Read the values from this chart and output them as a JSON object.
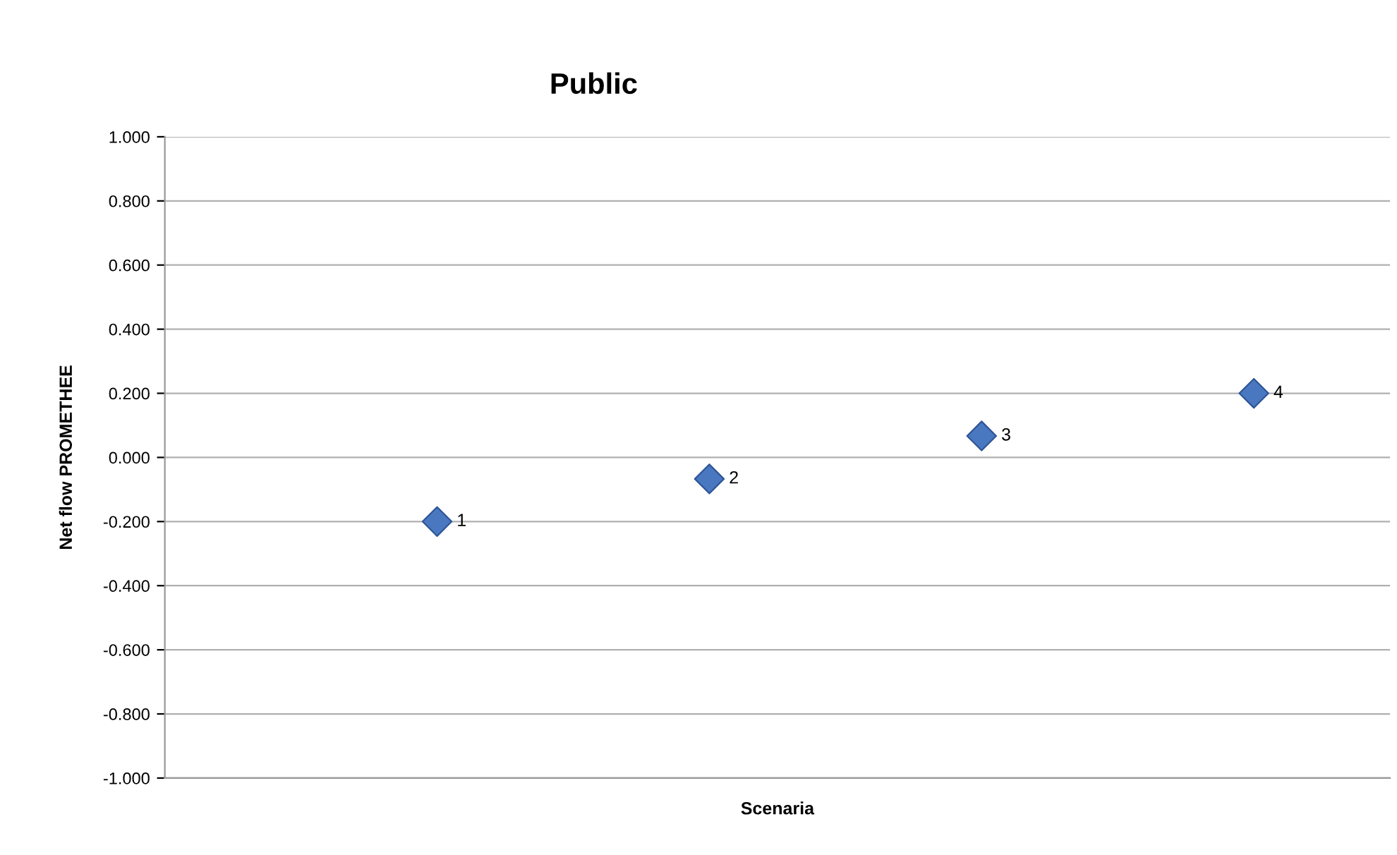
{
  "chart_data": {
    "type": "scatter",
    "title": "Public",
    "xlabel": "Scenaria",
    "ylabel": "Net flow PROMETHEE",
    "categories": [
      null,
      null,
      null,
      null
    ],
    "series": [
      {
        "name": "1",
        "color": "#4a78c0",
        "values": [
          -0.2,
          null,
          null,
          null
        ]
      },
      {
        "name": "2",
        "color": "#4a78c0",
        "values": [
          null,
          -0.067,
          null,
          null
        ]
      },
      {
        "name": "3",
        "color": "#4a78c0",
        "values": [
          null,
          null,
          0.067,
          null
        ]
      },
      {
        "name": "4",
        "color": "#4a78c0",
        "values": [
          null,
          null,
          null,
          0.2
        ]
      }
    ],
    "ylim": [
      -1,
      1
    ],
    "yticks": [
      {
        "value": -1,
        "label": "-1.000"
      },
      {
        "value": -0.8,
        "label": "-0.800"
      },
      {
        "value": -0.6,
        "label": "-0.600"
      },
      {
        "value": -0.4,
        "label": "-0.400"
      },
      {
        "value": -0.2,
        "label": "-0.200"
      },
      {
        "value": 0,
        "label": "0.000"
      },
      {
        "value": 0.2,
        "label": "0.200"
      },
      {
        "value": 0.4,
        "label": "0.400"
      },
      {
        "value": 0.6,
        "label": "0.600"
      },
      {
        "value": 0.8,
        "label": "0.800"
      },
      {
        "value": 1,
        "label": "1.000"
      }
    ],
    "grid": "y",
    "marker": "diamond",
    "tick_labels": "y",
    "legend": false
  }
}
